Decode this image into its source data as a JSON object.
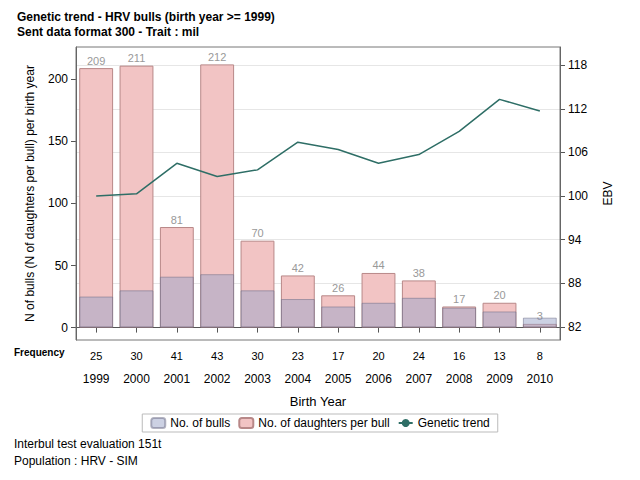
{
  "chart_data": {
    "type": "bar",
    "title": "Genetic trend - HRV bulls (birth year >= 1999)",
    "subtitle": "Sent data format 300 - Trait : mil",
    "x_label": "Birth Year",
    "y_label": "N of bulls (N of daughters per bull) per birth year",
    "y2_label": "EBV",
    "frequency_label": "Frequency",
    "footer": [
      "Interbul test evaluation 151t",
      "Population : HRV - SIM"
    ],
    "categories": [
      "1999",
      "2000",
      "2001",
      "2002",
      "2003",
      "2004",
      "2005",
      "2006",
      "2007",
      "2008",
      "2009",
      "2010"
    ],
    "series": [
      {
        "name": "No. of bulls",
        "type": "bar",
        "color": "#9aa4c8",
        "values": [
          25,
          30,
          41,
          43,
          30,
          23,
          17,
          20,
          24,
          16,
          13,
          8
        ]
      },
      {
        "name": "No. of daughters per bull",
        "type": "bar",
        "color": "#f2c4c4",
        "data_labels": true,
        "values": [
          209,
          211,
          81,
          212,
          70,
          42,
          26,
          44,
          38,
          17,
          20,
          3
        ]
      },
      {
        "name": "Genetic trend",
        "type": "line",
        "color": "#2e6e66",
        "axis": "y2",
        "values": [
          100.0,
          100.3,
          104.5,
          102.7,
          103.6,
          107.4,
          106.4,
          104.5,
          105.7,
          108.9,
          113.3,
          111.7
        ]
      }
    ],
    "ylim": [
      -10,
      226
    ],
    "yticks": [
      0,
      50,
      100,
      150,
      200
    ],
    "y2lim": [
      80.2,
      120.5
    ],
    "y2ticks": [
      82,
      88,
      94,
      100,
      106,
      112,
      118
    ],
    "grid": true,
    "legend": "bottom"
  }
}
